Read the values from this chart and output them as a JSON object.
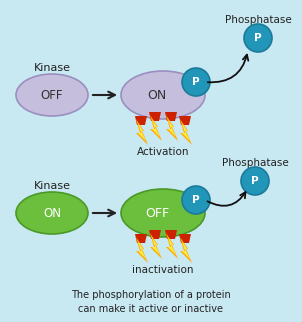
{
  "bg_color": "#c8e8f2",
  "purple_fill": "#c5bedd",
  "purple_edge": "#9b8fc0",
  "green_fill": "#6bbf3c",
  "green_edge": "#4a9928",
  "teal_fill": "#2196b8",
  "teal_edge": "#1a7a99",
  "off_text": "OFF",
  "on_text": "ON",
  "p_text": "P",
  "kinase_label": "Kinase",
  "activation_label": "Activation",
  "inactivation_label": "inactivation",
  "phosphatase_label": "Phosphatase",
  "caption": "The phosphorylation of a protein\ncan make it active or inactive"
}
